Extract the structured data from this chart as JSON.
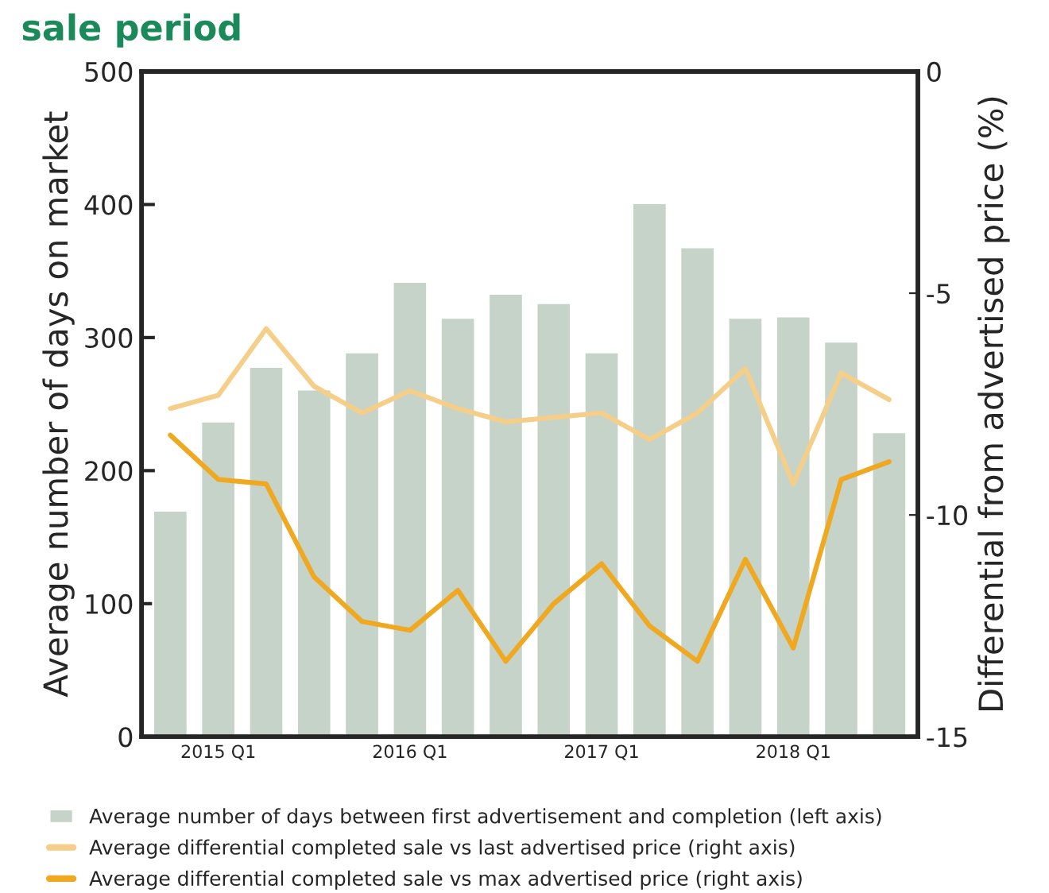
{
  "chart_data": {
    "type": "bar",
    "title": "sale period",
    "ylabel": "Average number of days on market",
    "y2label": "Differential from advertised price (%)",
    "categories": [
      null,
      "2015 Q1",
      null,
      null,
      null,
      "2016 Q1",
      null,
      null,
      null,
      "2017 Q1",
      null,
      null,
      null,
      "2018 Q1",
      null,
      null
    ],
    "series": [
      {
        "name": "Average number of days between first advertisement and completion (left axis)",
        "color": "#c5d3c8",
        "values": [
          170,
          237,
          278,
          261,
          289,
          342,
          315,
          333,
          326,
          289,
          401,
          368,
          315,
          316,
          297,
          229
        ]
      },
      {
        "name": "Average differential completed sale vs last advertised price (right axis)",
        "type": "line",
        "axis": "y2",
        "color": "#f5cf8a",
        "values": [
          -7.6,
          -7.3,
          -5.8,
          -7.1,
          -7.7,
          -7.2,
          -7.6,
          -7.9,
          -7.8,
          -7.7,
          -8.3,
          -7.7,
          -6.7,
          -9.3,
          -6.8,
          -7.4
        ]
      },
      {
        "name": "Average differential completed sale vs max advertised price (right axis)",
        "type": "line",
        "axis": "y2",
        "color": "#f0a820",
        "values": [
          -8.2,
          -9.2,
          -9.3,
          -11.4,
          -12.4,
          -12.6,
          -11.7,
          -13.3,
          -12.0,
          -11.1,
          -12.5,
          -13.3,
          -11.0,
          -13.0,
          -9.2,
          -8.8
        ]
      }
    ],
    "ylim": [
      0,
      500
    ],
    "yticks": [
      0,
      100,
      200,
      300,
      400,
      500
    ],
    "y2lim": [
      -15,
      0
    ],
    "y2ticks": [
      -15,
      -10,
      -5,
      0
    ],
    "grid": false,
    "legend": "bottom"
  }
}
